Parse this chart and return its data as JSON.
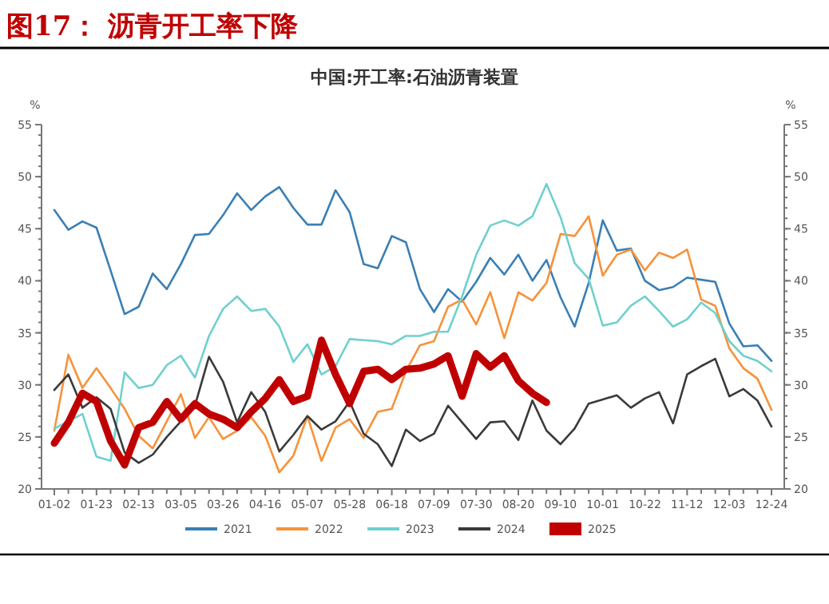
{
  "chart_data": {
    "type": "line",
    "title": "图17：  沥青开工率下降",
    "subtitle": "中国:开工率:石油沥青装置",
    "ylabel": "%",
    "y2label": "%",
    "categories": [
      "01-02",
      null,
      null,
      "01-23",
      null,
      null,
      "02-13",
      null,
      null,
      "03-05",
      null,
      null,
      "03-26",
      null,
      null,
      "04-16",
      null,
      null,
      "05-07",
      null,
      null,
      "05-28",
      null,
      null,
      "06-18",
      null,
      null,
      "07-09",
      null,
      null,
      "07-30",
      null,
      null,
      "08-20",
      null,
      null,
      "09-10",
      null,
      null,
      "10-01",
      null,
      null,
      "10-22",
      null,
      null,
      "11-12",
      null,
      null,
      "12-03",
      null,
      null,
      "12-24"
    ],
    "ylim": [
      20,
      55
    ],
    "yticks": [
      20,
      25,
      30,
      35,
      40,
      45,
      50,
      55
    ],
    "y2lim": [
      20,
      55
    ],
    "y2ticks": [
      20,
      25,
      30,
      35,
      40,
      45,
      50,
      55
    ],
    "grid": false,
    "legend": "bottom",
    "marker": "none",
    "line_style": "solid",
    "series": [
      {
        "name": "2021",
        "color": "#3a7fb5",
        "values": [
          46.8,
          44.9,
          45.7,
          45.1,
          41.0,
          36.8,
          37.5,
          40.7,
          39.2,
          41.6,
          44.4,
          44.5,
          46.3,
          48.4,
          46.8,
          48.1,
          49.0,
          47.0,
          45.4,
          45.4,
          48.7,
          46.6,
          41.6,
          41.2,
          44.3,
          43.7,
          39.2,
          37.0,
          39.2,
          38.0,
          39.9,
          42.2,
          40.6,
          42.5,
          40.0,
          42.0,
          38.4,
          35.6,
          39.8,
          45.8,
          42.9,
          43.1,
          40.0,
          39.1,
          39.4,
          40.3,
          40.1,
          39.9,
          35.9,
          33.7,
          33.8,
          32.3
        ]
      },
      {
        "name": "2022",
        "color": "#f7923a",
        "values": [
          25.6,
          32.9,
          29.7,
          31.6,
          29.7,
          27.7,
          25.1,
          23.9,
          26.5,
          29.1,
          24.9,
          26.9,
          24.8,
          25.6,
          26.9,
          25.1,
          21.6,
          23.2,
          27.0,
          22.7,
          25.9,
          26.7,
          24.9,
          27.4,
          27.7,
          31.3,
          33.8,
          34.2,
          37.5,
          38.2,
          35.8,
          38.9,
          34.5,
          38.9,
          38.1,
          39.8,
          44.5,
          44.3,
          46.2,
          40.5,
          42.5,
          43.0,
          41.0,
          42.7,
          42.2,
          43.0,
          38.2,
          37.6,
          33.5,
          31.6,
          30.6,
          27.6
        ]
      },
      {
        "name": "2023",
        "color": "#6fd0cf",
        "values": [
          25.8,
          26.5,
          27.2,
          23.1,
          22.7,
          31.2,
          29.7,
          30.0,
          31.9,
          32.8,
          30.7,
          34.7,
          37.3,
          38.5,
          37.1,
          37.3,
          35.6,
          32.2,
          33.9,
          31.0,
          31.8,
          34.4,
          34.3,
          34.2,
          33.9,
          34.7,
          34.7,
          35.1,
          35.1,
          38.5,
          42.5,
          45.3,
          45.8,
          45.3,
          46.2,
          49.3,
          46.1,
          41.7,
          40.2,
          35.7,
          36.0,
          37.6,
          38.5,
          37.1,
          35.6,
          36.3,
          37.9,
          36.9,
          34.2,
          32.8,
          32.3,
          31.3
        ]
      },
      {
        "name": "2024",
        "color": "#3a3a3a",
        "values": [
          29.5,
          31.0,
          27.8,
          28.8,
          27.7,
          23.5,
          22.5,
          23.3,
          25.0,
          26.5,
          28.0,
          32.7,
          30.3,
          26.4,
          29.3,
          27.4,
          23.6,
          25.2,
          27.0,
          25.7,
          26.5,
          28.4,
          25.3,
          24.3,
          22.2,
          25.7,
          24.6,
          25.3,
          28.0,
          26.4,
          24.8,
          26.4,
          26.5,
          24.7,
          28.5,
          25.6,
          24.3,
          25.8,
          28.2,
          28.6,
          29.0,
          27.8,
          28.7,
          29.3,
          26.3,
          31.0,
          31.8,
          32.5,
          28.9,
          29.6,
          28.5,
          26.0
        ]
      },
      {
        "name": "2025",
        "color": "#c00000",
        "values": [
          24.4,
          26.4,
          29.2,
          28.4,
          24.6,
          22.3,
          25.9,
          26.4,
          28.4,
          26.7,
          28.2,
          27.2,
          26.7,
          25.9,
          27.4,
          28.7,
          30.5,
          28.4,
          28.9,
          34.3,
          31.0,
          28.2,
          31.3,
          31.5,
          30.5,
          31.5,
          31.6,
          32.0,
          32.8,
          28.9,
          33.0,
          31.7,
          32.8,
          30.4,
          29.2,
          28.3,
          null,
          null,
          null,
          null,
          null,
          null,
          null,
          null,
          null,
          null,
          null,
          null,
          null,
          null,
          null,
          null
        ]
      }
    ]
  }
}
